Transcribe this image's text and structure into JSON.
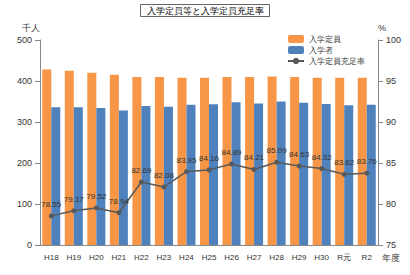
{
  "chart_data": {
    "type": "bar",
    "title": "入学定員等と入学定員充足率",
    "xlabel": "年度",
    "ylabel": "千人",
    "y2label": "%",
    "categories": [
      "H18",
      "H19",
      "H20",
      "H21",
      "H22",
      "H23",
      "H24",
      "H25",
      "H26",
      "H27",
      "H28",
      "H29",
      "H30",
      "R元",
      "R2"
    ],
    "series": [
      {
        "name": "入学定員",
        "type": "bar",
        "color": "#f79646",
        "values": [
          428,
          425,
          420,
          415,
          410,
          410,
          408,
          408,
          410,
          410,
          411,
          410,
          408,
          408,
          408
        ]
      },
      {
        "name": "入学者",
        "type": "bar",
        "color": "#4f81bd",
        "values": [
          336,
          336,
          334,
          328,
          339,
          337,
          342,
          343,
          348,
          345,
          350,
          347,
          344,
          341,
          342
        ]
      },
      {
        "name": "入学定員充足率",
        "type": "line",
        "axis": "y2",
        "color": "#595959",
        "marker": "circle",
        "data_labels": true,
        "values": [
          78.55,
          79.17,
          79.52,
          78.94,
          82.69,
          82.08,
          83.95,
          84.16,
          84.89,
          84.21,
          85.09,
          84.63,
          84.32,
          83.62,
          83.76
        ]
      }
    ],
    "ylim": [
      0,
      500
    ],
    "yticks": [
      0,
      100,
      200,
      300,
      400,
      500
    ],
    "y2lim": [
      75,
      100
    ],
    "y2ticks": [
      75,
      80,
      85,
      90,
      95,
      100
    ],
    "grid": false,
    "legend": "top-right"
  }
}
